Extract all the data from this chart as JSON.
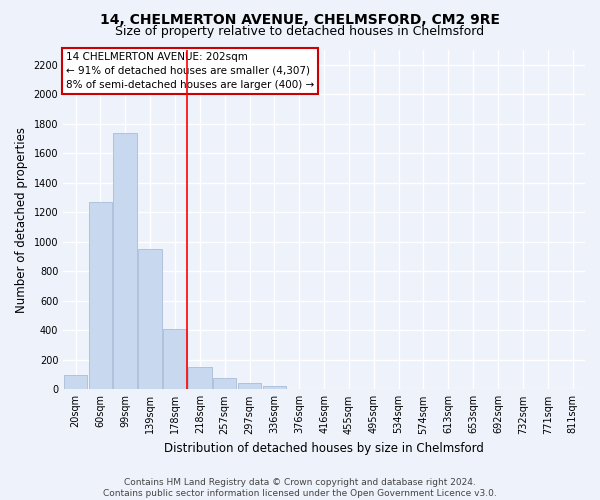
{
  "title": "14, CHELMERTON AVENUE, CHELMSFORD, CM2 9RE",
  "subtitle": "Size of property relative to detached houses in Chelmsford",
  "xlabel": "Distribution of detached houses by size in Chelmsford",
  "ylabel": "Number of detached properties",
  "footer_line1": "Contains HM Land Registry data © Crown copyright and database right 2024.",
  "footer_line2": "Contains public sector information licensed under the Open Government Licence v3.0.",
  "annotation_line1": "14 CHELMERTON AVENUE: 202sqm",
  "annotation_line2": "← 91% of detached houses are smaller (4,307)",
  "annotation_line3": "8% of semi-detached houses are larger (400) →",
  "categories": [
    "20sqm",
    "60sqm",
    "99sqm",
    "139sqm",
    "178sqm",
    "218sqm",
    "257sqm",
    "297sqm",
    "336sqm",
    "376sqm",
    "416sqm",
    "455sqm",
    "495sqm",
    "534sqm",
    "574sqm",
    "613sqm",
    "653sqm",
    "692sqm",
    "732sqm",
    "771sqm",
    "811sqm"
  ],
  "bar_heights": [
    100,
    1270,
    1740,
    950,
    410,
    150,
    80,
    40,
    20,
    0,
    0,
    0,
    0,
    0,
    0,
    0,
    0,
    0,
    0,
    0,
    0
  ],
  "bar_color": "#c8d8ee",
  "bar_edge_color": "#a8bcd8",
  "red_line_x": 4.5,
  "ylim": [
    0,
    2300
  ],
  "yticks": [
    0,
    200,
    400,
    600,
    800,
    1000,
    1200,
    1400,
    1600,
    1800,
    2000,
    2200
  ],
  "bg_color": "#eef2fa",
  "plot_bg_color": "#eef2fa",
  "grid_color": "#ffffff",
  "annotation_box_facecolor": "#ffffff",
  "annotation_box_edgecolor": "#cc0000",
  "title_fontsize": 10,
  "subtitle_fontsize": 9,
  "label_fontsize": 8.5,
  "tick_fontsize": 7,
  "ann_fontsize": 7.5,
  "footer_fontsize": 6.5
}
